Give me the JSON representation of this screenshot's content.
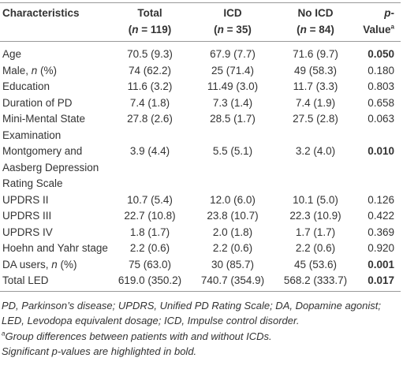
{
  "table": {
    "header": [
      {
        "line1": "Characteristics"
      },
      {
        "line1": "Total",
        "line2": [
          "(",
          "n",
          " = 119)"
        ]
      },
      {
        "line1": "ICD",
        "line2": [
          "(",
          "n",
          " = 35)"
        ]
      },
      {
        "line1": "No ICD",
        "line2": [
          "(",
          "n",
          " = 84)"
        ]
      },
      {
        "line1": "p",
        "line1_rest": "-Value",
        "sup": "a"
      }
    ],
    "rows": [
      {
        "label": [
          "Age"
        ],
        "total": "70.5 (9.3)",
        "icd": "67.9 (7.7)",
        "no_icd": "71.6 (9.7)",
        "p": "0.050",
        "bold": true
      },
      {
        "label": [
          "Male, ",
          "n",
          " (%)"
        ],
        "total": "74 (62.2)",
        "icd": "25 (71.4)",
        "no_icd": "49 (58.3)",
        "p": "0.180",
        "bold": false
      },
      {
        "label": [
          "Education"
        ],
        "total": "11.6 (3.2)",
        "icd": "11.49 (3.0)",
        "no_icd": "11.7 (3.3)",
        "p": "0.803",
        "bold": false
      },
      {
        "label": [
          "Duration of PD"
        ],
        "total": "7.4 (1.8)",
        "icd": "7.3 (1.4)",
        "no_icd": "7.4 (1.9)",
        "p": "0.658",
        "bold": false
      },
      {
        "label": [
          "Mini-Mental State Examination"
        ],
        "total": "27.8 (2.6)",
        "icd": "28.5 (1.7)",
        "no_icd": "27.5 (2.8)",
        "p": "0.063",
        "bold": false
      },
      {
        "label": [
          "Montgomery and Aasberg Depression Rating Scale"
        ],
        "total": "3.9 (4.4)",
        "icd": "5.5 (5.1)",
        "no_icd": "3.2 (4.0)",
        "p": "0.010",
        "bold": true
      },
      {
        "label": [
          "UPDRS II"
        ],
        "total": "10.7 (5.4)",
        "icd": "12.0 (6.0)",
        "no_icd": "10.1 (5.0)",
        "p": "0.126",
        "bold": false
      },
      {
        "label": [
          "UPDRS III"
        ],
        "total": "22.7 (10.8)",
        "icd": "23.8 (10.7)",
        "no_icd": "22.3 (10.9)",
        "p": "0.422",
        "bold": false
      },
      {
        "label": [
          "UPDRS IV"
        ],
        "total": "1.8 (1.7)",
        "icd": "2.0 (1.8)",
        "no_icd": "1.7 (1.7)",
        "p": "0.369",
        "bold": false
      },
      {
        "label": [
          "Hoehn and Yahr stage"
        ],
        "total": "2.2 (0.6)",
        "icd": "2.2 (0.6)",
        "no_icd": "2.2 (0.6)",
        "p": "0.920",
        "bold": false
      },
      {
        "label": [
          "DA users, ",
          "n",
          " (%)"
        ],
        "total": "75 (63.0)",
        "icd": "30 (85.7)",
        "no_icd": "45 (53.6)",
        "p": "0.001",
        "bold": true
      },
      {
        "label": [
          "Total LED"
        ],
        "total": "619.0 (350.2)",
        "icd": "740.7 (354.9)",
        "no_icd": "568.2 (333.7)",
        "p": "0.017",
        "bold": true
      }
    ]
  },
  "footnotes": [
    {
      "text": "PD, Parkinson’s disease; UPDRS, Unified PD Rating Scale; DA, Dopamine agonist; LED, Levodopa equivalent dosage; ICD, Impulse control disorder."
    },
    {
      "sup": "a",
      "text": "Group differences between patients with and without ICDs."
    },
    {
      "text": "Significant p-values are highlighted in bold."
    }
  ]
}
